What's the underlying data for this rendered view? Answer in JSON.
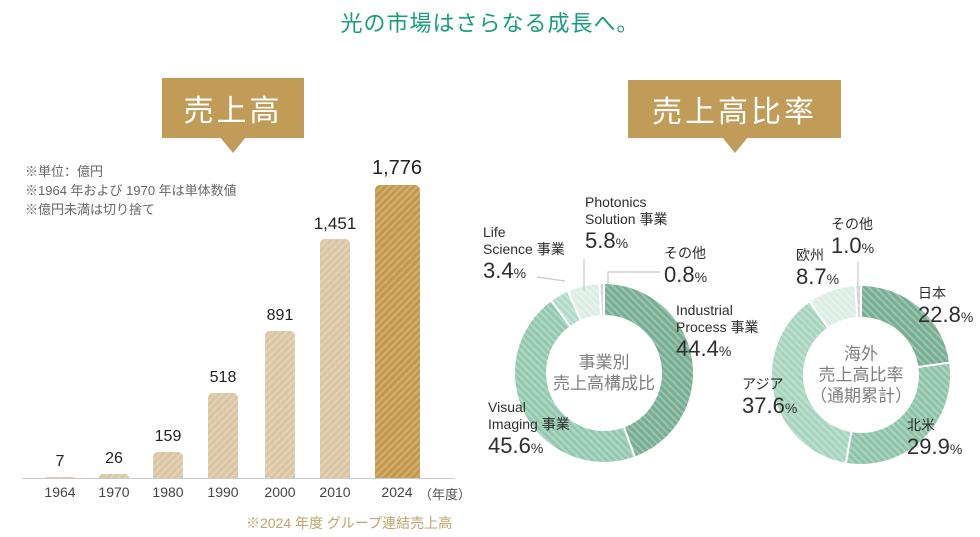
{
  "title": "光の市場はさらなる成長へ。",
  "colors": {
    "title": "#189e7d",
    "badge_bg": "#c19b58",
    "bar_default": "#dbc6a3",
    "bar_highlight": "#c4984a",
    "axis": "#cccccc",
    "note": "#666666",
    "footnote": "#c2a369",
    "leader_line": "#c9c9c9",
    "label_text": "#2e2e2e",
    "center_text": "#7f7f7f"
  },
  "sales_chart": {
    "header": "売上高",
    "notes": [
      "※単位：億円",
      "※1964 年および 1970 年は単体数値",
      "※億円未満は切り捨て"
    ],
    "axis_suffix": "（年度）",
    "footnote": "※2024 年度 グループ連結売上高"
  },
  "ratio_section": {
    "header": "売上高比率"
  },
  "chart_data": [
    {
      "type": "bar",
      "title": "売上高",
      "unit": "億円",
      "categories": [
        "1964",
        "1970",
        "1980",
        "1990",
        "2000",
        "2010",
        "2024"
      ],
      "values": [
        7,
        26,
        159,
        518,
        891,
        1451,
        1776
      ],
      "value_labels": [
        "7",
        "26",
        "159",
        "518",
        "891",
        "1,451",
        "1,776"
      ],
      "highlight_index": 6,
      "ylim": [
        0,
        1900
      ],
      "grid": false,
      "xlabel": "年度",
      "ylabel": "売上高（億円）"
    },
    {
      "type": "pie",
      "subtype": "donut",
      "title": "事業別売上高構成比",
      "center_label": [
        "事業別",
        "売上高構成比"
      ],
      "segments": [
        {
          "name_lines": [
            "Industrial",
            "Process 事業"
          ],
          "value": 44.4,
          "display": "44.4",
          "unit": "%",
          "color": "#76ad93"
        },
        {
          "name_lines": [
            "Visual",
            "Imaging 事業"
          ],
          "value": 45.6,
          "display": "45.6",
          "unit": "%",
          "color": "#92c8ae"
        },
        {
          "name_lines": [
            "Life",
            "Science 事業"
          ],
          "value": 3.4,
          "display": "3.4",
          "unit": "%",
          "color": "#aedbc9"
        },
        {
          "name_lines": [
            "Photonics",
            "Solution 事業"
          ],
          "value": 5.8,
          "display": "5.8",
          "unit": "%",
          "color": "#dcede4"
        },
        {
          "name_lines": [
            "その他"
          ],
          "value": 0.8,
          "display": "0.8",
          "unit": "%",
          "color": "#d2d2d2"
        }
      ]
    },
    {
      "type": "pie",
      "subtype": "donut",
      "title": "海外売上高比率（通期累計）",
      "center_label": [
        "海外",
        "売上高比率",
        "（通期累計）"
      ],
      "segments": [
        {
          "name_lines": [
            "日本"
          ],
          "value": 22.8,
          "display": "22.8",
          "unit": "%",
          "color": "#76ad93"
        },
        {
          "name_lines": [
            "北米"
          ],
          "value": 29.9,
          "display": "29.9",
          "unit": "%",
          "color": "#8dc3a9"
        },
        {
          "name_lines": [
            "アジア"
          ],
          "value": 37.6,
          "display": "37.6",
          "unit": "%",
          "color": "#a6d4bf"
        },
        {
          "name_lines": [
            "欧州"
          ],
          "value": 8.7,
          "display": "8.7",
          "unit": "%",
          "color": "#dcede4"
        },
        {
          "name_lines": [
            "その他"
          ],
          "value": 1.0,
          "display": "1.0",
          "unit": "%",
          "color": "#d2d2d2"
        }
      ]
    }
  ]
}
